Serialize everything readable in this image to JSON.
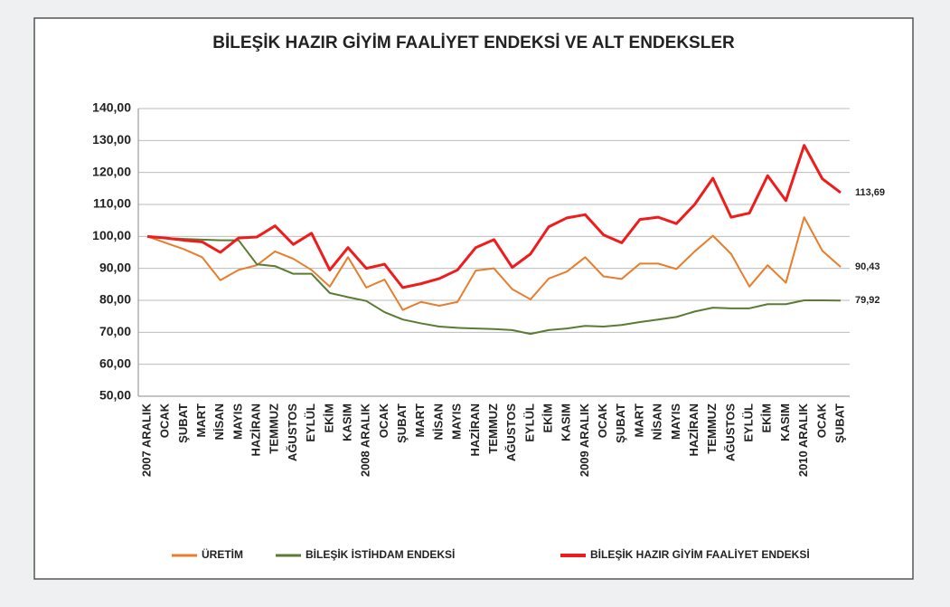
{
  "chart_data": {
    "type": "line",
    "title": "BİLEŞİK HAZIR GİYİM FAALİYET ENDEKSİ VE ALT ENDEKSLER",
    "categories": [
      "2007 ARALIK",
      "OCAK",
      "ŞUBAT",
      "MART",
      "NİSAN",
      "MAYIS",
      "HAZİRAN",
      "TEMMUZ",
      "AĞUSTOS",
      "EYLÜL",
      "EKİM",
      "KASIM",
      "2008 ARALIK",
      "OCAK",
      "ŞUBAT",
      "MART",
      "NİSAN",
      "MAYIS",
      "HAZİRAN",
      "TEMMUZ",
      "AĞUSTOS",
      "EYLÜL",
      "EKİM",
      "KASIM",
      "2009 ARALIK",
      "OCAK",
      "ŞUBAT",
      "MART",
      "NİSAN",
      "MAYIS",
      "HAZİRAN",
      "TEMMUZ",
      "AĞUSTOS",
      "EYLÜL",
      "EKİM",
      "KASIM",
      "2010 ARALIK",
      "OCAK",
      "ŞUBAT"
    ],
    "series": [
      {
        "name": "ÜRETİM",
        "color": "#e87d2b",
        "width": 2,
        "values": [
          100,
          98,
          96,
          93.5,
          86.3,
          89.5,
          91,
          95.3,
          93,
          89.5,
          84.3,
          93.5,
          84,
          86.5,
          77,
          79.5,
          78.3,
          79.5,
          89.3,
          90,
          83.5,
          80.3,
          86.8,
          89,
          93.5,
          87.5,
          86.7,
          91.5,
          91.5,
          89.8,
          95.3,
          100.2,
          94.5,
          84.3,
          91,
          85.5,
          106,
          95.5,
          90.43
        ],
        "value_labels": [
          null,
          null,
          null,
          null,
          null,
          null,
          null,
          null,
          null,
          null,
          null,
          null,
          null,
          null,
          null,
          null,
          null,
          null,
          null,
          null,
          null,
          null,
          null,
          null,
          null,
          null,
          null,
          null,
          null,
          null,
          null,
          null,
          null,
          null,
          null,
          null,
          null,
          null,
          "90,43"
        ]
      },
      {
        "name": "BİLEŞİK İSTİHDAM ENDEKSİ",
        "color": "#5b7a32",
        "width": 2,
        "values": [
          100,
          99.5,
          99.2,
          99,
          98.8,
          98.8,
          91.3,
          90.7,
          88.3,
          88.3,
          82.3,
          81,
          79.8,
          76.3,
          74,
          72.8,
          71.8,
          71.4,
          71.2,
          71,
          70.7,
          69.5,
          70.7,
          71.2,
          72,
          71.8,
          72.3,
          73.2,
          74,
          74.8,
          76.5,
          77.7,
          77.5,
          77.5,
          78.8,
          78.8,
          80,
          80,
          79.92
        ],
        "value_labels": [
          null,
          null,
          null,
          null,
          null,
          null,
          null,
          null,
          null,
          null,
          null,
          null,
          null,
          null,
          null,
          null,
          null,
          null,
          null,
          null,
          null,
          null,
          null,
          null,
          null,
          null,
          null,
          null,
          null,
          null,
          null,
          null,
          null,
          null,
          null,
          null,
          null,
          null,
          "79,92"
        ]
      },
      {
        "name": "BİLEŞİK HAZIR GİYİM FAALİYET ENDEKSİ",
        "color": "#ee1c1c",
        "width": 3,
        "values": [
          100,
          99.5,
          98.8,
          98.3,
          95,
          99.5,
          99.8,
          103.3,
          97.5,
          101,
          89.5,
          96.5,
          90,
          91.3,
          84,
          85.2,
          86.8,
          89.5,
          96.5,
          99,
          90.3,
          94.5,
          103,
          105.8,
          106.8,
          100.5,
          98,
          105.3,
          106,
          104,
          110,
          118.2,
          106,
          107.3,
          119,
          111.2,
          128.5,
          118,
          113.69
        ],
        "value_labels": [
          null,
          null,
          null,
          null,
          null,
          null,
          null,
          null,
          null,
          null,
          null,
          null,
          null,
          null,
          null,
          null,
          null,
          null,
          null,
          null,
          null,
          null,
          null,
          null,
          null,
          null,
          null,
          null,
          null,
          null,
          null,
          null,
          null,
          null,
          null,
          null,
          null,
          null,
          "113,69"
        ]
      }
    ],
    "ylim": [
      50,
      140
    ],
    "yticks": [
      {
        "value": 50,
        "label": "50,00"
      },
      {
        "value": 60,
        "label": "60,00"
      },
      {
        "value": 70,
        "label": "70,00"
      },
      {
        "value": 80,
        "label": "80,00"
      },
      {
        "value": 90,
        "label": "90,00"
      },
      {
        "value": 100,
        "label": "100,00"
      },
      {
        "value": 110,
        "label": "110,00"
      },
      {
        "value": 120,
        "label": "120,00"
      },
      {
        "value": 130,
        "label": "130,00"
      },
      {
        "value": 140,
        "label": "140,00"
      }
    ],
    "grid": true,
    "legend": "bottom"
  }
}
